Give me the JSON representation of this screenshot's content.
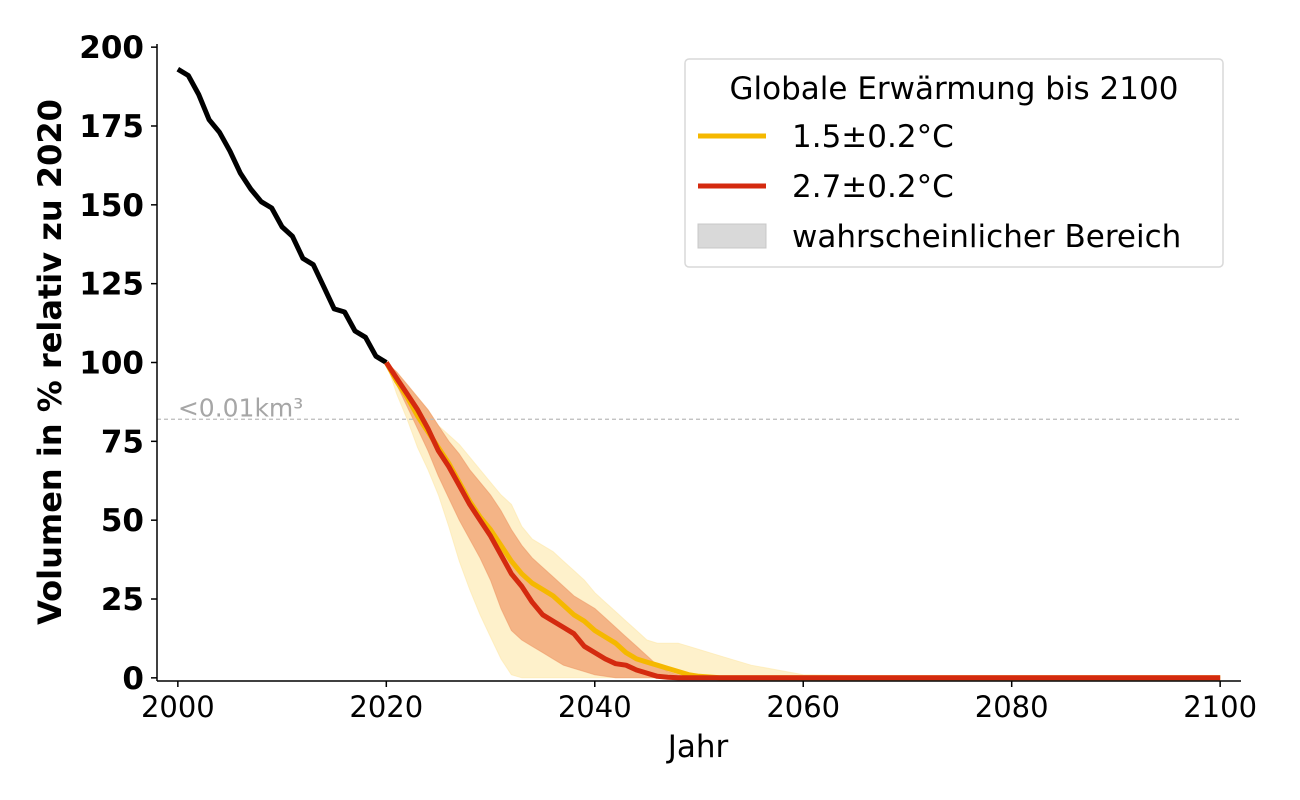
{
  "chart_data": {
    "type": "line",
    "xlabel": "Jahr",
    "ylabel": "Volumen in % relativ zu 2020",
    "xlim": [
      1998,
      2102
    ],
    "ylim": [
      -1,
      201
    ],
    "x_ticks": [
      2000,
      2020,
      2040,
      2060,
      2080,
      2100
    ],
    "y_ticks": [
      0,
      25,
      50,
      75,
      100,
      125,
      150,
      175,
      200
    ],
    "grid": false,
    "threshold": {
      "y": 82,
      "label": "<0.01km³",
      "color": "#bbbbbb"
    },
    "legend": {
      "title": "Globale Erwärmung bis 2100",
      "placement": "top-right",
      "entries": [
        "1.5±0.2°C",
        "2.7±0.2°C",
        "wahrscheinlicher Bereich"
      ]
    },
    "series": [
      {
        "name": "",
        "color": "#000000",
        "x": [
          2000,
          2001,
          2002,
          2003,
          2004,
          2005,
          2006,
          2007,
          2008,
          2009,
          2010,
          2011,
          2012,
          2013,
          2014,
          2015,
          2016,
          2017,
          2018,
          2019,
          2020
        ],
        "y": [
          193,
          191,
          185,
          177,
          173,
          167,
          160,
          155,
          151,
          149,
          143,
          140,
          133,
          131,
          124,
          117,
          116,
          110,
          108,
          102,
          100
        ]
      },
      {
        "name": "1.5±0.2°C",
        "color": "#f5b800",
        "band_color": "#fde7a8",
        "x": [
          2020,
          2021,
          2022,
          2023,
          2024,
          2025,
          2026,
          2027,
          2028,
          2029,
          2030,
          2031,
          2032,
          2033,
          2034,
          2035,
          2036,
          2037,
          2038,
          2039,
          2040,
          2041,
          2042,
          2043,
          2044,
          2045,
          2046,
          2047,
          2048,
          2049,
          2050,
          2052,
          2055,
          2060,
          2080,
          2100
        ],
        "y": [
          100,
          94,
          89,
          83,
          78,
          73,
          68,
          62,
          56,
          51,
          47,
          42,
          37,
          33,
          30,
          28,
          26,
          23,
          20,
          18,
          15,
          13,
          11,
          8,
          6,
          5,
          4,
          3,
          2,
          1,
          0.5,
          0,
          0,
          0,
          0,
          0
        ],
        "lower": [
          100,
          90,
          82,
          73,
          66,
          58,
          48,
          37,
          28,
          20,
          13,
          6,
          1,
          0,
          0,
          0,
          0,
          0,
          0,
          0,
          0,
          0,
          0,
          0,
          0,
          0,
          0,
          0,
          0,
          0,
          0,
          0,
          0,
          0,
          0,
          0
        ],
        "upper": [
          100,
          97,
          93,
          89,
          85,
          80,
          77,
          74,
          70,
          66,
          62,
          58,
          55,
          48,
          44,
          42,
          40,
          37,
          34,
          31,
          27,
          24,
          21,
          18,
          15,
          12,
          11,
          11,
          11,
          10,
          9,
          7,
          4,
          1,
          0,
          0
        ]
      },
      {
        "name": "2.7±0.2°C",
        "color": "#d42a0f",
        "band_color": "#ef9a68",
        "x": [
          2020,
          2021,
          2022,
          2023,
          2024,
          2025,
          2026,
          2027,
          2028,
          2029,
          2030,
          2031,
          2032,
          2033,
          2034,
          2035,
          2036,
          2037,
          2038,
          2039,
          2040,
          2041,
          2042,
          2043,
          2044,
          2045,
          2046,
          2047,
          2048,
          2049,
          2050,
          2060,
          2080,
          2100
        ],
        "y": [
          100,
          95,
          90,
          85,
          79,
          72,
          67,
          61,
          55,
          50,
          45,
          39,
          33,
          29,
          24,
          20,
          18,
          16,
          14,
          10,
          8,
          6,
          4.5,
          4,
          2.5,
          1.5,
          0.5,
          0.2,
          0,
          0,
          0,
          0,
          0,
          0
        ],
        "lower": [
          100,
          93,
          86,
          79,
          72,
          64,
          57,
          50,
          44,
          38,
          31,
          22,
          15,
          12,
          10,
          8,
          6,
          4,
          3,
          2,
          1,
          0.5,
          0,
          0,
          0,
          0,
          0,
          0,
          0,
          0,
          0,
          0,
          0,
          0
        ],
        "upper": [
          100,
          97,
          93,
          89,
          85,
          80,
          75,
          71,
          66,
          62,
          58,
          53,
          47,
          42,
          38,
          35,
          32,
          29,
          26,
          24,
          22,
          19,
          16,
          13,
          10,
          7,
          4,
          2,
          1,
          0,
          0,
          0,
          0,
          0
        ]
      }
    ]
  }
}
